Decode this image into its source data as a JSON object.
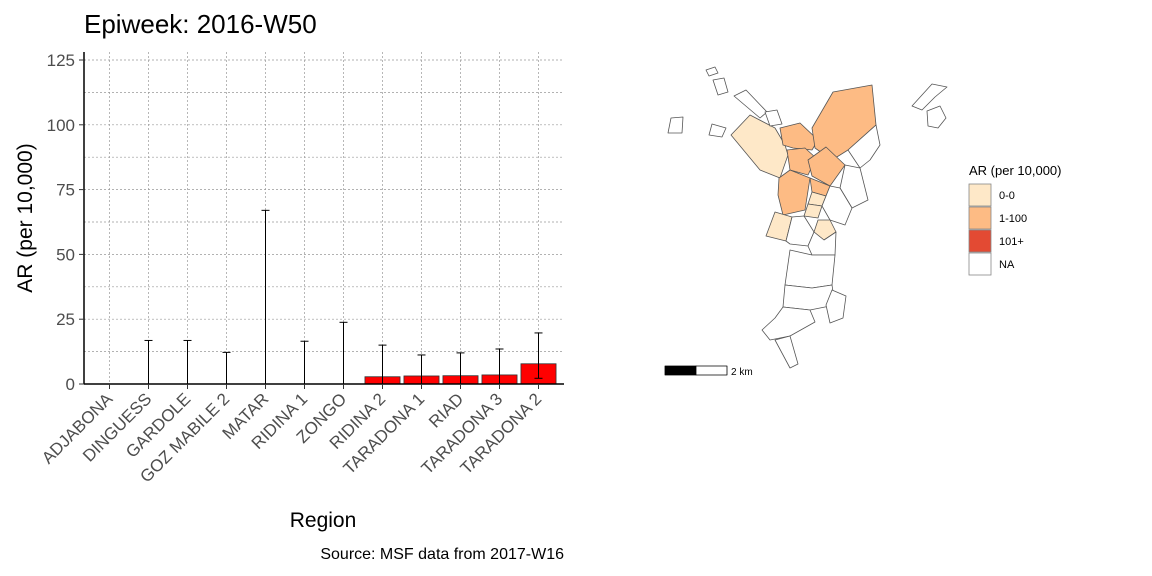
{
  "title": "Epiweek: 2016-W50",
  "caption": "Source: MSF data from 2017-W16",
  "chart_data": {
    "type": "bar",
    "xlabel": "Region",
    "ylabel": "AR (per 10,000)",
    "ylim": [
      0,
      125
    ],
    "yticks": [
      0,
      25,
      50,
      75,
      100,
      125
    ],
    "grid": true,
    "bar_color": "#ff0000",
    "categories": [
      "ADJABONA",
      "DINGUESS",
      "GARDOLE",
      "GOZ MABILE 2",
      "MATAR",
      "RIDINA 1",
      "ZONGO",
      "RIDINA 2",
      "TARADONA 1",
      "RIAD",
      "TARADONA 3",
      "TARADONA 2"
    ],
    "values": [
      0,
      0,
      0,
      0,
      0,
      0,
      0,
      2.8,
      3.1,
      3.2,
      3.5,
      7.8
    ],
    "error_upper": [
      0,
      16.8,
      16.8,
      12.2,
      67.0,
      16.5,
      23.8,
      15.0,
      11.2,
      12.0,
      13.5,
      19.7
    ],
    "error_lower": [
      0,
      0,
      0,
      0,
      0,
      0,
      0,
      0,
      0,
      0,
      0,
      2.2
    ]
  },
  "map": {
    "legend_title": "AR (per 10,000)",
    "legend": [
      {
        "label": "0-0",
        "color": "#fee8c8"
      },
      {
        "label": "1-100",
        "color": "#fdbb84"
      },
      {
        "label": "101+",
        "color": "#e34a33"
      },
      {
        "label": "NA",
        "color": "#ffffff"
      }
    ],
    "scale_label": "2 km"
  }
}
